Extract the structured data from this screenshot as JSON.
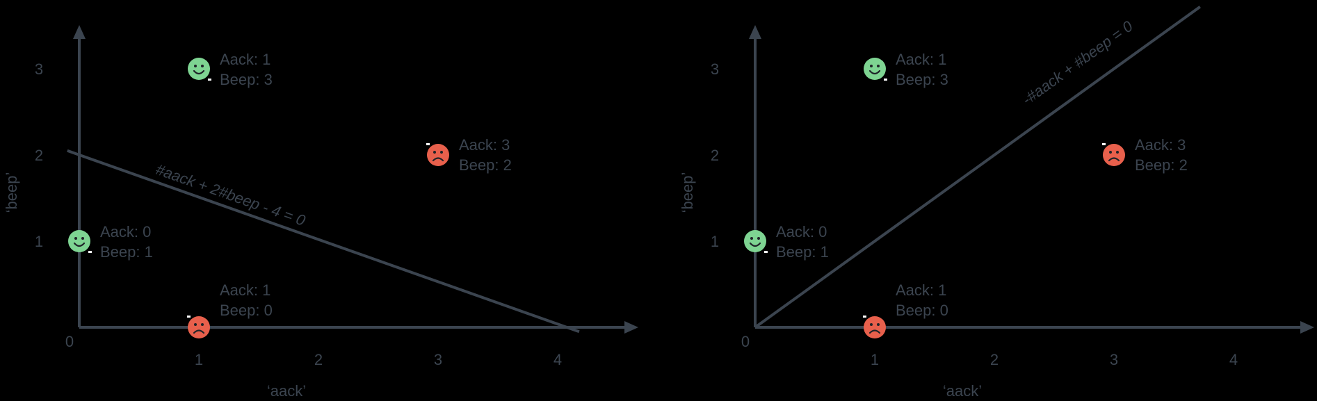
{
  "chart_data": [
    {
      "type": "scatter",
      "title": "",
      "xlabel": "‘aack’",
      "ylabel": "‘beep’",
      "xlim": [
        0,
        4
      ],
      "ylim": [
        0,
        3
      ],
      "x_ticks": [
        "0",
        "1",
        "2",
        "3",
        "4"
      ],
      "y_ticks": [
        "1",
        "2",
        "3"
      ],
      "points": [
        {
          "x": 1,
          "y": 3,
          "mood": "happy",
          "color": "#7ed492",
          "label_aack": "Aack: 1",
          "label_beep": "Beep: 3"
        },
        {
          "x": 3,
          "y": 2,
          "mood": "sad",
          "color": "#e8604c",
          "label_aack": "Aack: 3",
          "label_beep": "Beep: 2"
        },
        {
          "x": 0,
          "y": 1,
          "mood": "happy",
          "color": "#7ed492",
          "label_aack": "Aack: 0",
          "label_beep": "Beep: 1"
        },
        {
          "x": 1,
          "y": 0,
          "mood": "sad",
          "color": "#e8604c",
          "label_aack": "Aack: 1",
          "label_beep": "Beep: 0"
        }
      ],
      "boundary": {
        "equation": "#aack + 2#beep - 4 = 0",
        "x1": -0.1,
        "y1": 2.05,
        "x2": 4.18,
        "y2": -0.05
      }
    },
    {
      "type": "scatter",
      "title": "",
      "xlabel": "‘aack’",
      "ylabel": "‘beep’",
      "xlim": [
        0,
        4
      ],
      "ylim": [
        0,
        3
      ],
      "x_ticks": [
        "0",
        "1",
        "2",
        "3",
        "4"
      ],
      "y_ticks": [
        "1",
        "2",
        "3"
      ],
      "points": [
        {
          "x": 1,
          "y": 3,
          "mood": "happy",
          "color": "#7ed492",
          "label_aack": "Aack: 1",
          "label_beep": "Beep: 3"
        },
        {
          "x": 3,
          "y": 2,
          "mood": "sad",
          "color": "#e8604c",
          "label_aack": "Aack: 3",
          "label_beep": "Beep: 2"
        },
        {
          "x": 0,
          "y": 1,
          "mood": "happy",
          "color": "#7ed492",
          "label_aack": "Aack: 0",
          "label_beep": "Beep: 1"
        },
        {
          "x": 1,
          "y": 0,
          "mood": "sad",
          "color": "#e8604c",
          "label_aack": "Aack: 1",
          "label_beep": "Beep: 0"
        }
      ],
      "boundary": {
        "equation": "-#aack + #beep = 0",
        "x1": 0,
        "y1": 0,
        "x2": 3.72,
        "y2": 3.72
      }
    }
  ]
}
